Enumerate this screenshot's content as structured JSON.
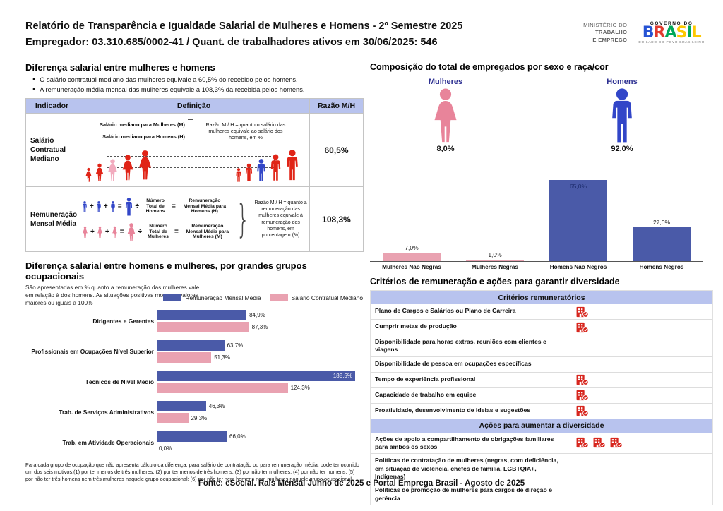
{
  "header": {
    "title_line1": "Relatório de Transparência e Igualdade Salarial de Mulheres e Homens - 2º Semestre 2025",
    "title_line2": "Empregador: 03.310.685/0002-41 / Quant. de trabalhadores ativos em 30/06/2025: 546",
    "ministry": {
      "line1": "MINISTÉRIO DO",
      "line2": "TRABALHO",
      "line3": "E EMPREGO"
    },
    "gov_logo": {
      "top": "GOVERNO DO",
      "brand_letters": [
        {
          "ch": "B",
          "color": "#2653d4"
        },
        {
          "ch": "R",
          "color": "#e23a2e"
        },
        {
          "ch": "A",
          "color": "#00a859"
        },
        {
          "ch": "S",
          "color": "#fdc800"
        },
        {
          "ch": "I",
          "color": "#00a859"
        },
        {
          "ch": "L",
          "color": "#fdc800"
        }
      ],
      "tagline": "DO LADO DO POVO BRASILEIRO"
    }
  },
  "section_gap": {
    "title": "Diferença salarial entre mulheres e homens",
    "bullets": [
      "O salário contratual mediano das mulheres equivale a 60,5% do recebido pelos homens.",
      "A remuneração média mensal das mulheres equivale a 108,3% da recebida pelos homens."
    ],
    "table": {
      "headers": [
        "Indicador",
        "Definição",
        "Razão M/H"
      ],
      "rows": [
        {
          "indicator": "Salário Contratual Mediano",
          "def_lines": [
            "Salário mediano para Mulheres (M)",
            "Salário mediano para Homens (H)"
          ],
          "def_note": "Razão M / H = quanto o salário das mulheres equivale ao salário dos homens, em %",
          "ratio": "60,5%"
        },
        {
          "indicator": "Remuneração Mensal Média",
          "eq_men": {
            "divisor": "Número\nTotal de\nHomens",
            "result": "Remuneração\nMensal Média para\nHomens (H)"
          },
          "eq_women": {
            "divisor": "Número\nTotal de\nMulheres",
            "result": "Remuneração\nMensal Média para\nMulheres (M)"
          },
          "def_note": "Razão M / H = quanto a remuneração das mulheres equivale à remuneração dos homens, em porcentagem (%)",
          "ratio": "108,3%"
        }
      ]
    }
  },
  "section_composition": {
    "title": "Composição do total de empregados por sexo e raça/cor",
    "female_label": "Mulheres",
    "female_value": "8,0%",
    "male_label": "Homens",
    "male_value": "92,0%"
  },
  "section_occupations": {
    "title": "Diferença salarial entre homens e mulheres, por grandes grupos ocupacionais",
    "subtitle": "São apresentadas em % quanto a remuneração das mulheres vale em relação à dos homens. As situações positivas mostram valores maiores ou iguais a 100%",
    "footnote": "Para cada grupo de ocupação que não apresenta cálculo da diferença, para salário de contratação ou para remuneração média, pode ter ocorrido um dos seis motivos:(1) por ter menos de três mulheres; (2) por ter menos de três homens; (3) por não ter mulheres; (4) por não ter homens; (5) por não ter três homens nem três mulheres naquele grupo ocupacional; (6) por não ter nem homens nem mulheres naquele grupo ocupacional."
  },
  "section_criteria": {
    "title": "Critérios de remuneração e ações para garantir diversidade",
    "groups": [
      {
        "header": "Critérios remuneratórios",
        "rows": [
          {
            "label": "Plano de Cargos e Salários ou Plano de Carreira",
            "checks": 1
          },
          {
            "label": "Cumprir metas de produção",
            "checks": 1
          },
          {
            "label": "Disponibilidade para horas extras, reuniões com clientes e viagens",
            "checks": 0
          },
          {
            "label": "Disponibilidade de pessoa em ocupações específicas",
            "checks": 0
          },
          {
            "label": "Tempo de experiência profissional",
            "checks": 1
          },
          {
            "label": "Capacidade de trabalho em equipe",
            "checks": 1
          },
          {
            "label": "Proatividade, desenvolvimento de ideias e sugestões",
            "checks": 1
          }
        ]
      },
      {
        "header": "Ações para aumentar a diversidade",
        "rows": [
          {
            "label": "Ações de apoio a compartilhamento de obrigações familiares para ambos os sexos",
            "checks": 3
          },
          {
            "label": "Políticas de contratação de mulheres (negras, com deficiência, em situação de violência, chefes de família, LGBTQIA+, Indígenas)",
            "checks": 0
          },
          {
            "label": "Políticas de promoção de mulheres para cargos de direção e gerência",
            "checks": 0
          }
        ]
      }
    ]
  },
  "footer": "Fonte: eSocial. Rais Mensal Junho de 2025 e Portal Emprega Brasil - Agosto de 2025",
  "colors": {
    "accent_lavender": "#b8c3ee",
    "bar_blue": "#4a5aa8",
    "bar_pink": "#e9a2b1",
    "icon_red": "#e02417",
    "icon_highlight_pink": "#f2abbe",
    "icon_highlight_blue": "#3246c8",
    "icon_big_pink": "#e8849a",
    "check_red": "#d7261e",
    "navy_label": "#2e3192"
  },
  "chart_data": [
    {
      "type": "bar",
      "title": "Composição do total de empregados por sexo e raça/cor",
      "categories": [
        "Mulheres Não Negras",
        "Mulheres Negras",
        "Homens Não Negros",
        "Homens Negros"
      ],
      "values": [
        7.0,
        1.0,
        65.0,
        27.0
      ],
      "labels": [
        "7,0%",
        "1,0%",
        "65,0%",
        "27,0%"
      ],
      "colors": [
        "#e9a2b1",
        "#e9a2b1",
        "#4a5aa8",
        "#4a5aa8"
      ],
      "xlabel": "",
      "ylabel": "",
      "ylim": [
        0,
        70
      ],
      "grid": false,
      "unit": "%"
    },
    {
      "type": "bar",
      "orientation": "horizontal",
      "title": "Diferença salarial entre homens e mulheres, por grandes grupos ocupacionais",
      "categories": [
        "Dirigentes e Gerentes",
        "Profissionais em Ocupações Nível Superior",
        "Técnicos de Nível Médio",
        "Trab. de Serviços Administrativos",
        "Trab. em Atividade Operacionais"
      ],
      "series": [
        {
          "name": "Remuneração Mensal Média",
          "color": "#4a5aa8",
          "values": [
            84.9,
            63.7,
            188.5,
            46.3,
            66.0
          ],
          "labels": [
            "84,9%",
            "63,7%",
            "188,5%",
            "46,3%",
            "66,0%"
          ]
        },
        {
          "name": "Salário Contratual Mediano",
          "color": "#e9a2b1",
          "values": [
            87.3,
            51.3,
            124.3,
            29.3,
            0.0
          ],
          "labels": [
            "87,3%",
            "51,3%",
            "124,3%",
            "29,3%",
            "0,0%"
          ]
        }
      ],
      "xlim": [
        0,
        200
      ],
      "grid": false,
      "unit": "%",
      "legend_position": "top-right"
    }
  ]
}
